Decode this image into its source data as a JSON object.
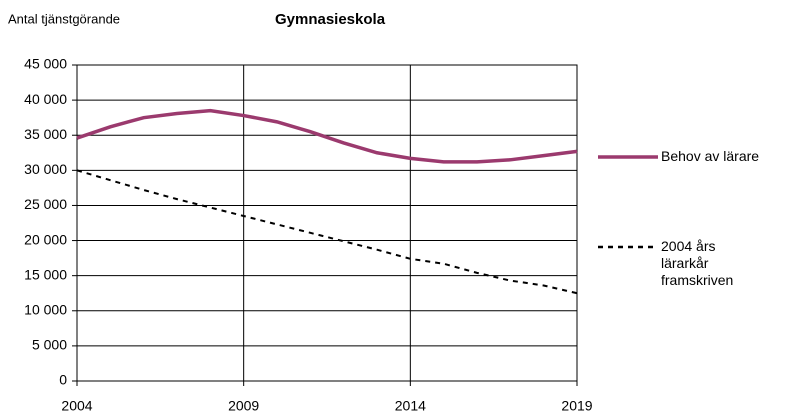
{
  "chart_data": {
    "type": "line",
    "title": "Gymnasieskola",
    "y_label": "Antal tjänstgörande",
    "x": [
      2004,
      2005,
      2006,
      2007,
      2008,
      2009,
      2010,
      2011,
      2012,
      2013,
      2014,
      2015,
      2016,
      2017,
      2018,
      2019
    ],
    "series": [
      {
        "name": "Behov av lärare",
        "color": "#9b3a6e",
        "dash": false,
        "values": [
          34600,
          36200,
          37500,
          38100,
          38500,
          37800,
          36900,
          35500,
          33900,
          32500,
          31700,
          31200,
          31200,
          31500,
          32100,
          32700
        ]
      },
      {
        "name": "2004 års lärarkår framskriven",
        "color": "#000000",
        "dash": true,
        "values": [
          30000,
          28600,
          27200,
          25900,
          24700,
          23500,
          22300,
          21100,
          19900,
          18700,
          17400,
          16700,
          15400,
          14300,
          13600,
          12500
        ]
      }
    ],
    "xlim": [
      2004,
      2019
    ],
    "xticks": [
      2004,
      2009,
      2014,
      2019
    ],
    "ylim": [
      0,
      45000
    ],
    "yticks": [
      0,
      {
        "value": 5000,
        "label": "5 000"
      },
      {
        "value": 10000,
        "label": "10 000"
      },
      {
        "value": 15000,
        "label": "15 000"
      },
      {
        "value": 20000,
        "label": "20 000"
      },
      {
        "value": 25000,
        "label": "25 000"
      },
      {
        "value": 30000,
        "label": "30 000"
      },
      {
        "value": 35000,
        "label": "35 000"
      },
      {
        "value": 40000,
        "label": "40 000"
      },
      {
        "value": 45000,
        "label": "45 000"
      }
    ],
    "grid": true
  }
}
